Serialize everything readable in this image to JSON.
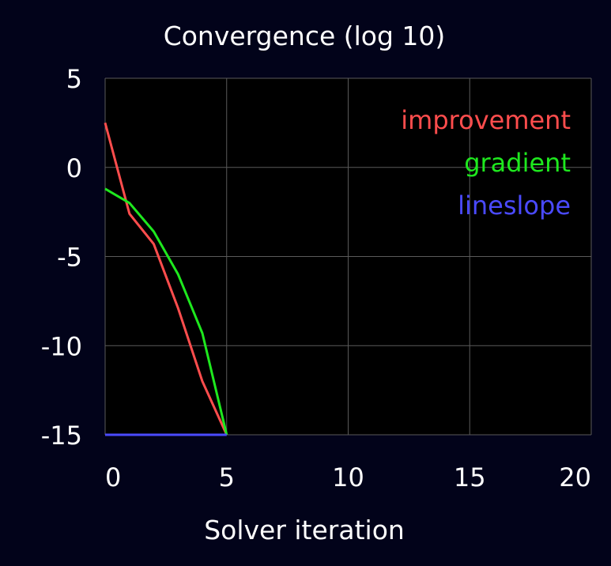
{
  "chart_data": {
    "type": "line",
    "title": "Convergence (log 10)",
    "xlabel": "Solver iteration",
    "ylabel": "",
    "xlim": [
      0,
      20
    ],
    "ylim": [
      -15,
      5
    ],
    "xticks": [
      "0",
      "5",
      "10",
      "15",
      "20"
    ],
    "yticks": [
      "5",
      "0",
      "-5",
      "-10",
      "-15"
    ],
    "xtick_values": [
      0,
      5,
      10,
      15,
      20
    ],
    "ytick_values": [
      5,
      0,
      -5,
      -10,
      -15
    ],
    "grid": true,
    "legend_position": "top-right",
    "series": [
      {
        "name": "improvement",
        "color": "#ff4d4d",
        "x": [
          0,
          1,
          2,
          3,
          4,
          5
        ],
        "y": [
          2.5,
          -2.6,
          -4.3,
          -7.9,
          -12.0,
          -15.0
        ]
      },
      {
        "name": "gradient",
        "color": "#1ee81e",
        "x": [
          0,
          1,
          2,
          3,
          4,
          5
        ],
        "y": [
          -1.2,
          -2.0,
          -3.6,
          -6.0,
          -9.3,
          -15.0
        ]
      },
      {
        "name": "lineslope",
        "color": "#4a4aff",
        "x": [
          0,
          1,
          2,
          3,
          4,
          5
        ],
        "y": [
          -15.0,
          -15.0,
          -15.0,
          -15.0,
          -15.0,
          -15.0
        ]
      }
    ]
  }
}
